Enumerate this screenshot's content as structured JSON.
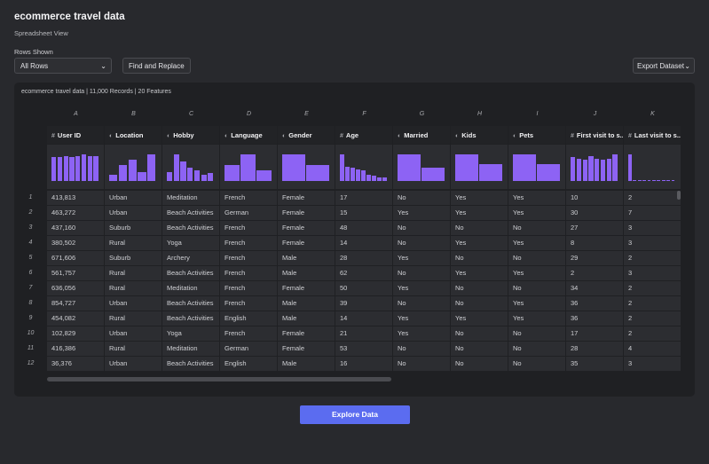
{
  "header": {
    "title": "ecommerce travel data",
    "subtitle": "Spreadsheet View"
  },
  "controls": {
    "rows_label": "Rows Shown",
    "rows_select": "All Rows",
    "find_replace": "Find and Replace",
    "export": "Export Dataset"
  },
  "panel": {
    "dataset": "ecommerce travel data",
    "records": "11,000 Records",
    "features": "20 Features"
  },
  "table": {
    "letters": [
      "A",
      "B",
      "C",
      "D",
      "E",
      "F",
      "G",
      "H",
      "I",
      "J",
      "K"
    ],
    "columns": [
      "User ID",
      "Location",
      "Hobby",
      "Language",
      "Gender",
      "Age",
      "Married",
      "Kids",
      "Pets",
      "First visit to s...",
      "Last visit to s..."
    ],
    "histograms": [
      [
        0.9,
        0.9,
        0.95,
        0.9,
        0.95,
        1,
        0.95,
        0.95
      ],
      [
        0.25,
        0.6,
        0.8,
        0.35,
        1
      ],
      [
        0.35,
        1,
        0.75,
        0.5,
        0.4,
        0.25,
        0.3
      ],
      [
        0.6,
        1,
        0.4
      ],
      [
        1,
        0.6
      ],
      [
        1,
        0.55,
        0.5,
        0.45,
        0.4,
        0.25,
        0.2,
        0.15,
        0.15
      ],
      [
        1,
        0.5
      ],
      [
        1,
        0.65
      ],
      [
        1,
        0.65
      ],
      [
        0.9,
        0.85,
        0.8,
        0.95,
        0.85,
        0.8,
        0.85,
        1
      ],
      [
        1,
        0.05,
        0.05,
        0.05,
        0.05,
        0.05,
        0.05,
        0.05,
        0.05,
        0.05
      ]
    ],
    "row_numbers": [
      1,
      2,
      3,
      4,
      5,
      6,
      7,
      8,
      9,
      10,
      11,
      12
    ],
    "rows": [
      [
        "413,813",
        "Urban",
        "Meditation",
        "French",
        "Female",
        "17",
        "No",
        "Yes",
        "Yes",
        "10",
        "2"
      ],
      [
        "463,272",
        "Urban",
        "Beach Activities",
        "German",
        "Female",
        "15",
        "Yes",
        "Yes",
        "Yes",
        "30",
        "7"
      ],
      [
        "437,160",
        "Suburb",
        "Beach Activities",
        "French",
        "Female",
        "48",
        "No",
        "No",
        "No",
        "27",
        "3"
      ],
      [
        "380,502",
        "Rural",
        "Yoga",
        "French",
        "Female",
        "14",
        "No",
        "Yes",
        "Yes",
        "8",
        "3"
      ],
      [
        "671,606",
        "Suburb",
        "Archery",
        "French",
        "Male",
        "28",
        "Yes",
        "No",
        "No",
        "29",
        "2"
      ],
      [
        "561,757",
        "Rural",
        "Beach Activities",
        "French",
        "Male",
        "62",
        "No",
        "Yes",
        "Yes",
        "2",
        "3"
      ],
      [
        "636,056",
        "Rural",
        "Meditation",
        "French",
        "Female",
        "50",
        "Yes",
        "No",
        "No",
        "34",
        "2"
      ],
      [
        "854,727",
        "Urban",
        "Beach Activities",
        "French",
        "Male",
        "39",
        "No",
        "No",
        "Yes",
        "36",
        "2"
      ],
      [
        "454,082",
        "Rural",
        "Beach Activities",
        "English",
        "Male",
        "14",
        "Yes",
        "Yes",
        "Yes",
        "36",
        "2"
      ],
      [
        "102,829",
        "Urban",
        "Yoga",
        "French",
        "Female",
        "21",
        "Yes",
        "No",
        "No",
        "17",
        "2"
      ],
      [
        "416,386",
        "Rural",
        "Meditation",
        "German",
        "Female",
        "53",
        "No",
        "No",
        "No",
        "28",
        "4"
      ],
      [
        "36,376",
        "Urban",
        "Beach Activities",
        "English",
        "Male",
        "16",
        "No",
        "No",
        "No",
        "35",
        "3"
      ]
    ]
  },
  "footer": {
    "button": "Explore Data"
  }
}
